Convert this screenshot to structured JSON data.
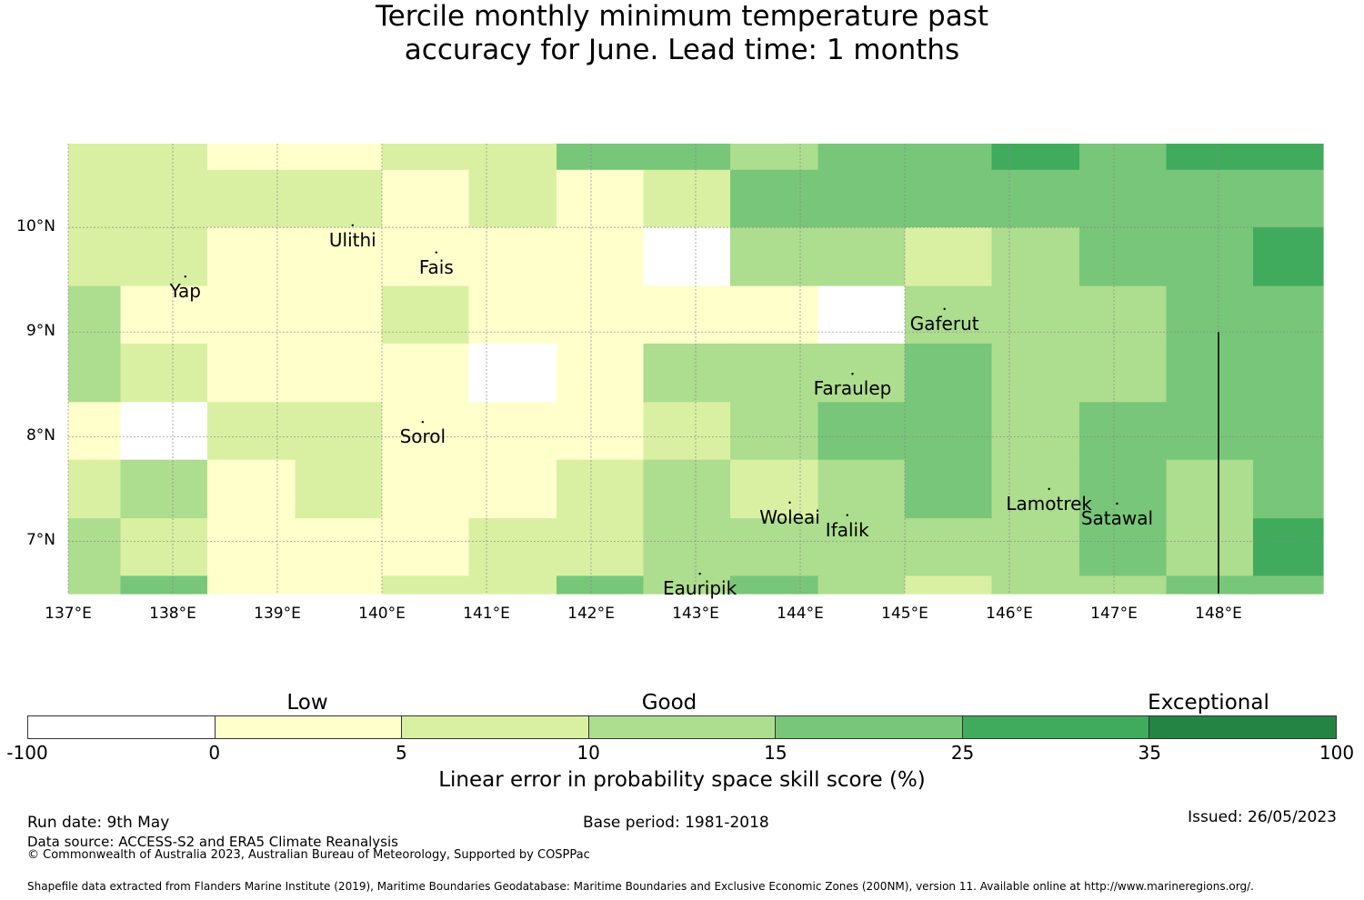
{
  "title_lines": [
    "Tercile monthly minimum temperature past",
    "accuracy for June. Lead time: 1 months"
  ],
  "map": {
    "lon_range": [
      137,
      149
    ],
    "lat_range": [
      6.5,
      10.8
    ],
    "lon_ticks": [
      {
        "value": 137,
        "label": "137°E"
      },
      {
        "value": 138,
        "label": "138°E"
      },
      {
        "value": 139,
        "label": "139°E"
      },
      {
        "value": 140,
        "label": "140°E"
      },
      {
        "value": 141,
        "label": "141°E"
      },
      {
        "value": 142,
        "label": "142°E"
      },
      {
        "value": 143,
        "label": "143°E"
      },
      {
        "value": 144,
        "label": "144°E"
      },
      {
        "value": 145,
        "label": "145°E"
      },
      {
        "value": 146,
        "label": "146°E"
      },
      {
        "value": 147,
        "label": "147°E"
      },
      {
        "value": 148,
        "label": "148°E"
      }
    ],
    "lat_ticks": [
      {
        "value": 10,
        "label": "10°N"
      },
      {
        "value": 9,
        "label": "9°N"
      },
      {
        "value": 8,
        "label": "8°N"
      },
      {
        "value": 7,
        "label": "7°N"
      }
    ],
    "grid_lon_edges": [
      137,
      137.5,
      138.33,
      139.17,
      140,
      140.83,
      141.67,
      142.5,
      143.33,
      144.17,
      145,
      145.83,
      146.67,
      147.5,
      148.33,
      149
    ],
    "grid_lat_edges": [
      10.8,
      10.55,
      10.0,
      9.44,
      8.89,
      8.33,
      7.78,
      7.22,
      6.67,
      6.5
    ],
    "grid_classes": [
      [
        2,
        2,
        1,
        1,
        2,
        2,
        4,
        4,
        3,
        4,
        4,
        5,
        4,
        5,
        5
      ],
      [
        2,
        2,
        2,
        2,
        1,
        2,
        1,
        2,
        4,
        4,
        4,
        4,
        4,
        4,
        4
      ],
      [
        2,
        2,
        1,
        1,
        1,
        1,
        1,
        0,
        3,
        3,
        2,
        3,
        4,
        4,
        5
      ],
      [
        3,
        1,
        1,
        1,
        2,
        1,
        1,
        1,
        1,
        0,
        3,
        3,
        3,
        4,
        4
      ],
      [
        3,
        2,
        1,
        1,
        1,
        0,
        1,
        3,
        3,
        3,
        4,
        3,
        3,
        4,
        4
      ],
      [
        1,
        0,
        2,
        2,
        1,
        1,
        1,
        2,
        3,
        4,
        4,
        3,
        4,
        4,
        4
      ],
      [
        2,
        3,
        1,
        2,
        1,
        1,
        2,
        3,
        2,
        3,
        4,
        3,
        4,
        3,
        4
      ],
      [
        3,
        2,
        1,
        1,
        1,
        2,
        2,
        3,
        3,
        3,
        3,
        3,
        4,
        3,
        5
      ],
      [
        3,
        4,
        1,
        1,
        2,
        2,
        4,
        3,
        4,
        3,
        2,
        3,
        3,
        4,
        4
      ]
    ],
    "boundary_line": {
      "lon": 148,
      "lat_from": 9.0,
      "lat_to": 6.5
    },
    "places": [
      {
        "name": "Ulithi",
        "lon": 139.72,
        "lat": 10.02
      },
      {
        "name": "Fais",
        "lon": 140.52,
        "lat": 9.76
      },
      {
        "name": "Yap",
        "lon": 138.12,
        "lat": 9.53
      },
      {
        "name": "Gaferut",
        "lon": 145.38,
        "lat": 9.22
      },
      {
        "name": "Faraulep",
        "lon": 144.5,
        "lat": 8.6
      },
      {
        "name": "Sorol",
        "lon": 140.39,
        "lat": 8.14
      },
      {
        "name": "Woleai",
        "lon": 143.9,
        "lat": 7.37
      },
      {
        "name": "Ifalik",
        "lon": 144.45,
        "lat": 7.25
      },
      {
        "name": "Lamotrek",
        "lon": 146.38,
        "lat": 7.5
      },
      {
        "name": "Satawal",
        "lon": 147.03,
        "lat": 7.36
      },
      {
        "name": "Eauripik",
        "lon": 143.04,
        "lat": 6.69
      }
    ]
  },
  "colorbar": {
    "colors": [
      "#ffffff",
      "#ffffcc",
      "#d9f0a3",
      "#addd8e",
      "#78c679",
      "#41ab5d",
      "#238443"
    ],
    "ticks": [
      "-100",
      "0",
      "5",
      "10",
      "15",
      "25",
      "35",
      "100"
    ],
    "categories": [
      "Low",
      "Good",
      "Exceptional"
    ],
    "label": "Linear error in probability space skill score (%)"
  },
  "footer": {
    "run_date": "Run date: 9th May",
    "base_period": "Base period: 1981-2018",
    "issued": "Issued: 26/05/2023",
    "data_source": "Data source: ACCESS-S2 and ERA5 Climate Reanalysis",
    "copyright": "© Commonwealth of Australia 2023, Australian Bureau of Meteorology, Supported by COSPPac",
    "shapefile": "Shapefile data extracted from Flanders Marine Institute (2019), Maritime Boundaries Geodatabase: Maritime Boundaries and Exclusive Economic Zones (200NM), version 11. Available online at http://www.marineregions.org/."
  }
}
